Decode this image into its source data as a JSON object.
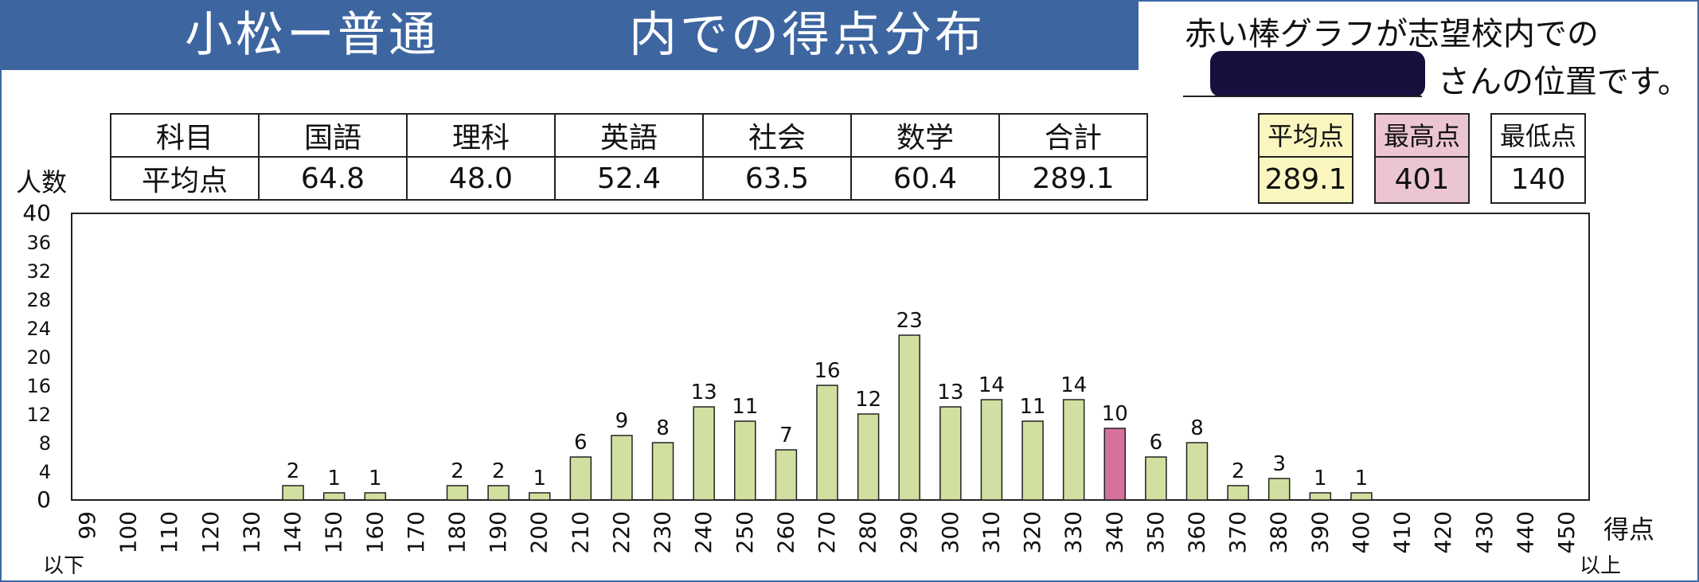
{
  "banner": {
    "title_school": "小松ー普通",
    "title_suffix": "内での得点分布"
  },
  "note": {
    "line1": "赤い棒グラフが志望校内での",
    "line2": "さんの位置です。"
  },
  "avg_table": {
    "row1_label": "科目",
    "row2_label": "平均点",
    "subjects": [
      {
        "name": "国語",
        "avg": "64.8"
      },
      {
        "name": "理科",
        "avg": "48.0"
      },
      {
        "name": "英語",
        "avg": "52.4"
      },
      {
        "name": "社会",
        "avg": "63.5"
      },
      {
        "name": "数学",
        "avg": "60.4"
      },
      {
        "name": "合計",
        "avg": "289.1"
      }
    ]
  },
  "stats": {
    "avg": {
      "label": "平均点",
      "value": "289.1"
    },
    "max": {
      "label": "最高点",
      "value": "401"
    },
    "min": {
      "label": "最低点",
      "value": "140"
    }
  },
  "colors": {
    "bar": "#d1e0a0",
    "highlight": "#d6709c",
    "banner": "#3d66a1"
  },
  "chart_data": {
    "type": "bar",
    "ylabel": "人数",
    "xlabel": "得点",
    "x_below_note": "以下",
    "x_above_note": "以上",
    "ylim": [
      0,
      40
    ],
    "yticks": [
      0,
      4,
      8,
      12,
      16,
      20,
      24,
      28,
      32,
      36,
      40
    ],
    "categories": [
      "99",
      "100",
      "110",
      "120",
      "130",
      "140",
      "150",
      "160",
      "170",
      "180",
      "190",
      "200",
      "210",
      "220",
      "230",
      "240",
      "250",
      "260",
      "270",
      "280",
      "290",
      "300",
      "310",
      "320",
      "330",
      "340",
      "350",
      "360",
      "370",
      "380",
      "390",
      "400",
      "410",
      "420",
      "430",
      "440",
      "450"
    ],
    "values": [
      0,
      0,
      0,
      0,
      0,
      2,
      1,
      1,
      0,
      2,
      2,
      1,
      6,
      9,
      8,
      13,
      11,
      7,
      16,
      12,
      23,
      13,
      14,
      11,
      14,
      10,
      6,
      8,
      2,
      3,
      1,
      1,
      0,
      0,
      0,
      0,
      0
    ],
    "highlight_category": "340",
    "grid": false,
    "legend": "none"
  }
}
